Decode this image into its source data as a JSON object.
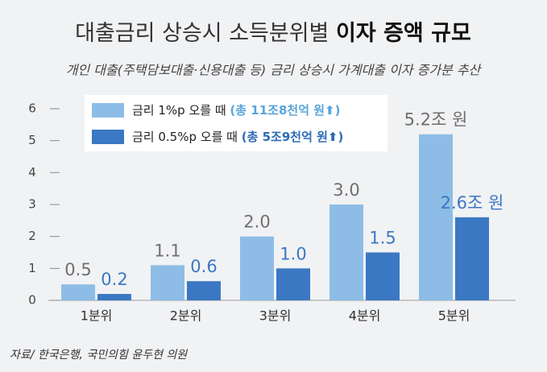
{
  "chart_data": {
    "type": "bar",
    "title": "대출금리 상승시 소득분위별",
    "title_emphasis": "이자 증액 규모",
    "subtitle": "개인 대출(주택담보대출·신용대출 등) 금리 상승시 가계대출 이자 증가분 추산",
    "source": "자료/ 한국은행, 국민의힘 윤두현 의원",
    "categories": [
      "1분위",
      "2분위",
      "3분위",
      "4분위",
      "5분위"
    ],
    "series": [
      {
        "name": "금리 1%p 오를 때",
        "note": "(총 11조8천억 원⬆)",
        "color": "#8dbde6",
        "label_color": "#6f6f6f",
        "note_color": "#5aa5dc",
        "values": [
          0.5,
          1.1,
          2.0,
          3.0,
          5.2
        ],
        "value_labels": [
          "0.5",
          "1.1",
          "2.0",
          "3.0",
          "5.2조 원"
        ]
      },
      {
        "name": "금리 0.5%p 오를 때",
        "note": "(총 5조9천억 원⬆)",
        "color": "#3b78c3",
        "label_color": "#3b78c3",
        "note_color": "#2f6bb5",
        "values": [
          0.2,
          0.6,
          1.0,
          1.5,
          2.6
        ],
        "value_labels": [
          "0.2",
          "0.6",
          "1.0",
          "1.5",
          "2.6조 원"
        ]
      }
    ],
    "ylim": [
      0,
      6
    ],
    "yticks": [
      0,
      1,
      2,
      3,
      4,
      5,
      6
    ]
  }
}
